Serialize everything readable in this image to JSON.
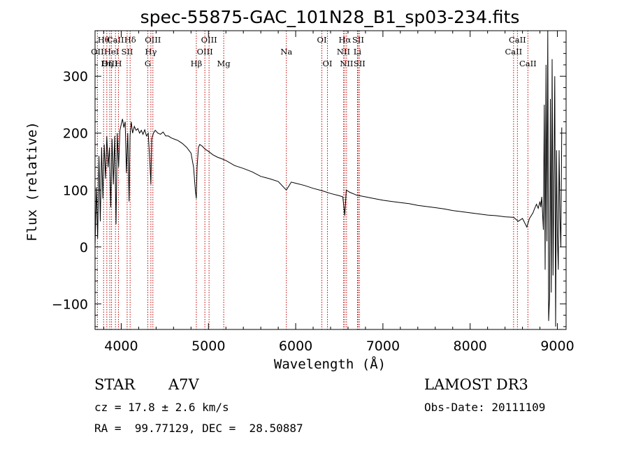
{
  "chart_data": {
    "type": "line",
    "title": "spec-55875-GAC_101N28_B1_sp03-234.fits",
    "xlabel": "Wavelength (Å)",
    "ylabel": "Flux (relative)",
    "xlim": [
      3700,
      9100
    ],
    "ylim": [
      -145,
      380
    ],
    "xticks": [
      4000,
      5000,
      6000,
      7000,
      8000,
      9000
    ],
    "yticks": [
      -100,
      0,
      100,
      200,
      300
    ],
    "series": [
      {
        "name": "flux",
        "x": [
          3700,
          3715,
          3730,
          3745,
          3760,
          3775,
          3790,
          3805,
          3820,
          3835,
          3850,
          3865,
          3880,
          3895,
          3910,
          3925,
          3940,
          3955,
          3970,
          3985,
          4000,
          4015,
          4030,
          4045,
          4060,
          4075,
          4090,
          4101,
          4115,
          4130,
          4150,
          4170,
          4190,
          4210,
          4230,
          4250,
          4270,
          4290,
          4310,
          4330,
          4340,
          4350,
          4370,
          4390,
          4420,
          4450,
          4480,
          4510,
          4540,
          4570,
          4600,
          4650,
          4700,
          4750,
          4800,
          4830,
          4850,
          4861,
          4870,
          4885,
          4900,
          4930,
          4960,
          5000,
          5050,
          5100,
          5150,
          5200,
          5300,
          5400,
          5500,
          5600,
          5700,
          5800,
          5893,
          5950,
          6000,
          6100,
          6200,
          6300,
          6400,
          6500,
          6540,
          6563,
          6580,
          6620,
          6700,
          6800,
          6900,
          7000,
          7100,
          7200,
          7300,
          7400,
          7500,
          7600,
          7700,
          7800,
          7900,
          8000,
          8100,
          8200,
          8300,
          8400,
          8500,
          8550,
          8600,
          8650,
          8680,
          8700,
          8720,
          8740,
          8760,
          8780,
          8800,
          8810,
          8820,
          8830,
          8840,
          8850,
          8860,
          8870,
          8880,
          8890,
          8900,
          8910,
          8920,
          8930,
          8940,
          8950,
          8960,
          8970,
          8980,
          8990,
          9000,
          9010,
          9020,
          9030,
          9040,
          9050
        ],
        "y": [
          0,
          105,
          15,
          160,
          45,
          175,
          85,
          180,
          120,
          195,
          140,
          175,
          70,
          190,
          110,
          195,
          40,
          200,
          140,
          205,
          215,
          225,
          210,
          220,
          130,
          200,
          80,
          195,
          220,
          200,
          212,
          205,
          208,
          200,
          205,
          198,
          206,
          195,
          200,
          145,
          110,
          190,
          200,
          205,
          200,
          198,
          202,
          195,
          195,
          192,
          190,
          187,
          182,
          175,
          165,
          140,
          100,
          85,
          140,
          175,
          180,
          177,
          172,
          168,
          162,
          158,
          155,
          152,
          143,
          138,
          132,
          124,
          120,
          115,
          100,
          114,
          112,
          108,
          103,
          99,
          94,
          90,
          88,
          55,
          100,
          96,
          91,
          88,
          85,
          82,
          80,
          78,
          76,
          73,
          71,
          69,
          67,
          64,
          62,
          60,
          58,
          56,
          55,
          53,
          52,
          45,
          50,
          35,
          50,
          55,
          60,
          68,
          75,
          68,
          80,
          70,
          88,
          60,
          30,
          250,
          -40,
          320,
          10,
          380,
          -130,
          -90,
          260,
          -80,
          330,
          -50,
          120,
          300,
          -140,
          170,
          20,
          -40,
          170,
          50,
          0,
          210
        ]
      }
    ],
    "line_markers": [
      {
        "label": "Hθ",
        "wl": 3798,
        "row": 0
      },
      {
        "label": "CaII",
        "wl": 3934,
        "row": 0
      },
      {
        "label": "Hδ",
        "wl": 4102,
        "row": 0
      },
      {
        "label": "OIII",
        "wl": 4363,
        "row": 0
      },
      {
        "label": "OIII",
        "wl": 5007,
        "row": 0
      },
      {
        "label": "OI",
        "wl": 6300,
        "row": 0
      },
      {
        "label": "Hα",
        "wl": 6563,
        "row": 0
      },
      {
        "label": "SII",
        "wl": 6716,
        "row": 0
      },
      {
        "label": "CaII",
        "wl": 8542,
        "row": 0
      },
      {
        "label": "OII",
        "wl": 3727,
        "row": 1
      },
      {
        "label": "HeI",
        "wl": 3889,
        "row": 1
      },
      {
        "label": "SII",
        "wl": 4068,
        "row": 1
      },
      {
        "label": "Hγ",
        "wl": 4340,
        "row": 1
      },
      {
        "label": "OIII",
        "wl": 4959,
        "row": 1
      },
      {
        "label": "Na",
        "wl": 5893,
        "row": 1
      },
      {
        "label": "NII",
        "wl": 6548,
        "row": 1
      },
      {
        "label": "Li",
        "wl": 6708,
        "row": 1
      },
      {
        "label": "CaII",
        "wl": 8498,
        "row": 1
      },
      {
        "label": "OIII",
        "wl": 3869,
        "row": 2
      },
      {
        "label": "Hη",
        "wl": 3835,
        "row": 2
      },
      {
        "label": "H",
        "wl": 3968,
        "row": 2
      },
      {
        "label": "G",
        "wl": 4305,
        "row": 2
      },
      {
        "label": "Hβ",
        "wl": 4861,
        "row": 2
      },
      {
        "label": "Mg",
        "wl": 5175,
        "row": 2
      },
      {
        "label": "OI",
        "wl": 6364,
        "row": 2
      },
      {
        "label": "NII",
        "wl": 6583,
        "row": 2
      },
      {
        "label": "SII",
        "wl": 6731,
        "row": 2
      },
      {
        "label": "CaII",
        "wl": 8662,
        "row": 2
      }
    ],
    "marker_color": "#c00000"
  },
  "footer": {
    "object_type": "STAR",
    "subclass": "A7V",
    "survey": "LAMOST DR3",
    "cz": "cz = 17.8 ± 2.6 km/s",
    "obs_date": "Obs-Date: 20111109",
    "coords": "RA =  99.77129, DEC =  28.50887"
  }
}
